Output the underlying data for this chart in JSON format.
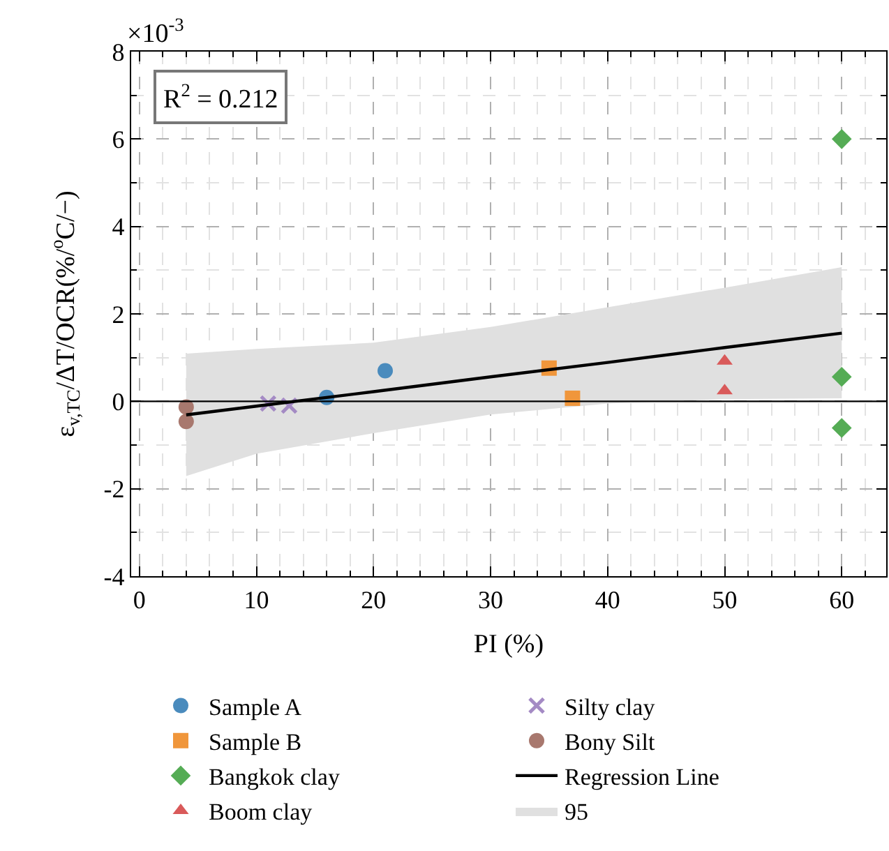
{
  "chart_data": {
    "type": "scatter",
    "xlabel": "PI (%)",
    "ylabel": "ε$_{v,TC}$/ΔT/OCR(%/$^{o}$C/−)",
    "annotations": [
      "×10$^{-3}$",
      "R$^{2}$ = 0.212",
      "95"
    ],
    "series": [
      {
        "name": "Sample A",
        "color": "#4a8bbd",
        "marker": "circle",
        "x": [
          16,
          21
        ],
        "values": [
          0.09,
          0.7
        ]
      },
      {
        "name": "Sample B",
        "color": "#f0963b",
        "marker": "square",
        "x": [
          35,
          37
        ],
        "values": [
          0.76,
          0.07
        ]
      },
      {
        "name": "Bangkok clay",
        "color": "#55ac55",
        "marker": "diamond",
        "x": [
          60,
          60,
          60
        ],
        "values": [
          6.0,
          0.56,
          -0.61
        ]
      },
      {
        "name": "Boom clay",
        "color": "#d95a5a",
        "marker": "triangle",
        "x": [
          50,
          50
        ],
        "values": [
          0.92,
          0.24
        ]
      },
      {
        "name": "Silty clay",
        "color": "#a48ac4",
        "marker": "cross",
        "x": [
          11,
          12.8
        ],
        "values": [
          -0.05,
          -0.1
        ]
      },
      {
        "name": "Bony Silt",
        "color": "#a8786e",
        "marker": "circle",
        "x": [
          4,
          4
        ],
        "values": [
          -0.13,
          -0.46
        ]
      },
      {
        "name": "Regression Line",
        "type": "line",
        "color": "#000000",
        "marker": "none",
        "x": [
          4,
          10,
          20,
          30,
          40,
          50,
          60
        ],
        "values": [
          -0.31,
          -0.11,
          0.22,
          0.56,
          0.89,
          1.23,
          1.56
        ],
        "lower": [
          -1.71,
          -1.2,
          -0.73,
          -0.3,
          -0.05,
          0.05,
          0.07
        ],
        "upper": [
          1.09,
          1.2,
          1.34,
          1.7,
          2.15,
          2.6,
          3.07
        ]
      }
    ],
    "ref_lines": [
      {
        "axis": "y",
        "value": 0,
        "color": "#000000"
      }
    ],
    "xlim": [
      -0.7,
      63.8
    ],
    "xticks": [
      0,
      10,
      20,
      30,
      40,
      50,
      60
    ],
    "ylim": [
      -4,
      8
    ],
    "yticks": [
      -4,
      -2,
      0,
      2,
      4,
      6,
      8
    ],
    "grid": true,
    "legend": "bottom"
  }
}
